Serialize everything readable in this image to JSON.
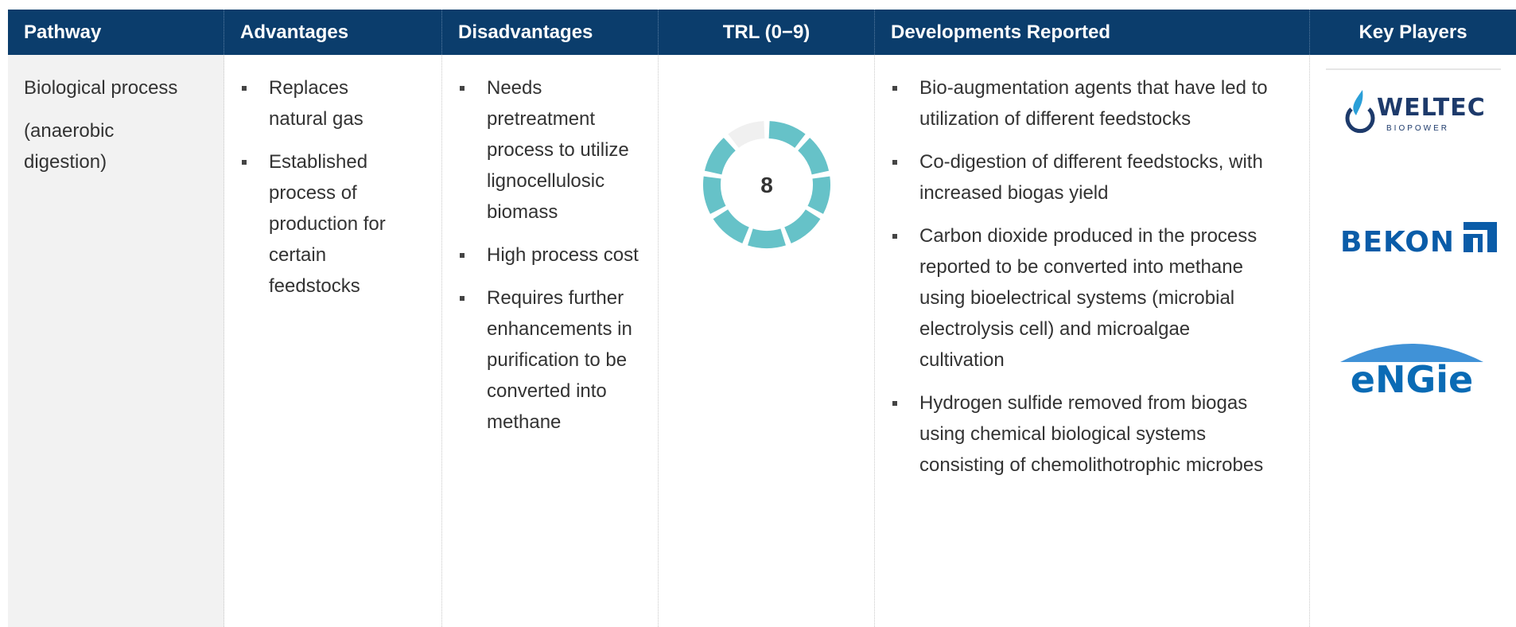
{
  "header": [
    "Pathway",
    "Advantages",
    "Disadvantages",
    "TRL (0−9)",
    "Developments Reported",
    "Key Players"
  ],
  "row": {
    "pathway": [
      "Biological process",
      "(anaerobic digestion)"
    ],
    "advantages": [
      "Replaces natural gas",
      "Established process of production for certain feedstocks"
    ],
    "disadvantages": [
      "Needs pretreatment process to utilize lignocellulosic biomass",
      "High process cost",
      "Requires further enhancements in purification to be converted into methane"
    ],
    "trl": 8,
    "trl_range": [
      0,
      9
    ],
    "developments": [
      "Bio-augmentation agents that have led to utilization of different feedstocks",
      "Co-digestion of different feedstocks, with increased biogas yield",
      "Carbon dioxide produced in the process reported to be converted into methane using bioelectrical systems (microbial electrolysis cell) and microalgae cultivation",
      "Hydrogen sulfide removed from biogas using chemical biological systems consisting of chemolithotrophic microbes"
    ],
    "key_players": [
      {
        "name": "WELTEC",
        "sub": "BIOPOWER"
      },
      {
        "name": "BEKON"
      },
      {
        "name": "eNGie"
      }
    ]
  }
}
